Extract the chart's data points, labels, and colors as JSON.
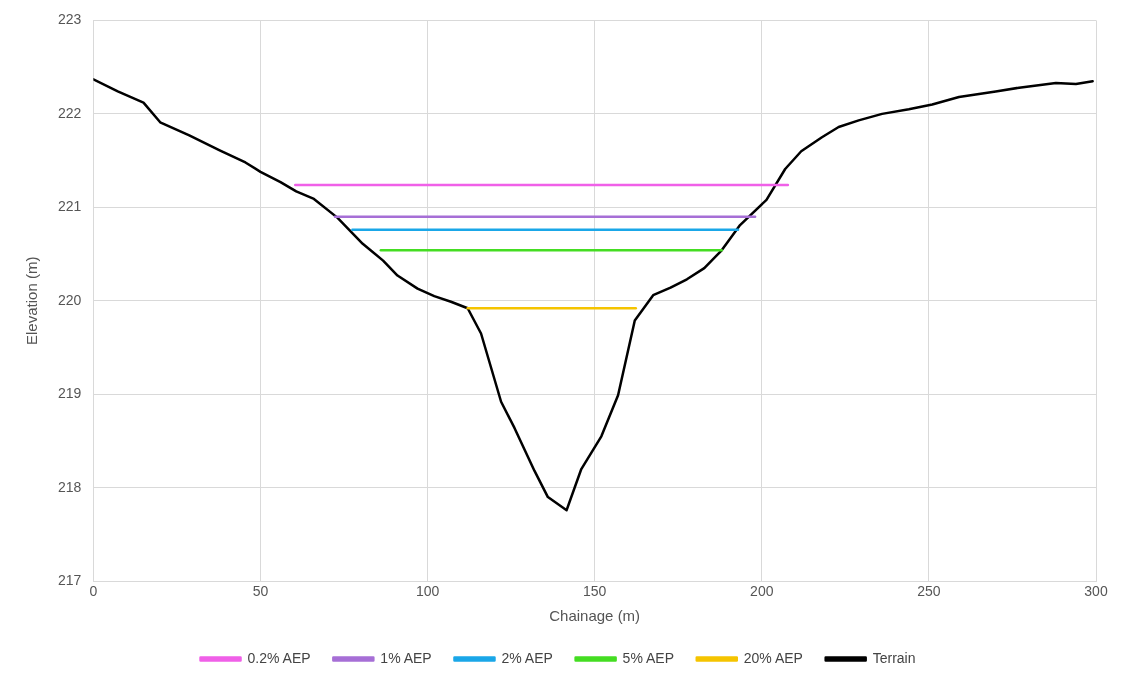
{
  "chart_data": {
    "type": "line",
    "xlabel": "Chainage (m)",
    "ylabel": "Elevation (m)",
    "xlim": [
      0,
      300
    ],
    "xticks": [
      0,
      50,
      100,
      150,
      200,
      250,
      300
    ],
    "ylim": [
      217,
      223
    ],
    "yticks": [
      217,
      218,
      219,
      220,
      221,
      222,
      223
    ],
    "grid": true,
    "legend": "bottom",
    "marker": "none",
    "line_style": "solid",
    "series": [
      {
        "name": "0.2% AEP",
        "color": "#f060e8",
        "x": [
          60.4,
          207.8
        ],
        "values": [
          221.24,
          221.24
        ]
      },
      {
        "name": "1% AEP",
        "color": "#a66fd6",
        "x": [
          72.3,
          198
        ],
        "values": [
          220.9,
          220.9
        ]
      },
      {
        "name": "2% AEP",
        "color": "#1aa7e8",
        "x": [
          77.5,
          192.9
        ],
        "values": [
          220.76,
          220.76
        ]
      },
      {
        "name": "5% AEP",
        "color": "#44dd22",
        "x": [
          86,
          188
        ],
        "values": [
          220.54,
          220.54
        ]
      },
      {
        "name": "20% AEP",
        "color": "#f5c400",
        "x": [
          112,
          162.3
        ],
        "values": [
          219.92,
          219.92
        ]
      },
      {
        "name": "Terrain",
        "color": "#000000",
        "x": [
          0,
          7.3,
          15,
          20,
          28.7,
          37.8,
          45.5,
          50,
          56,
          60.7,
          66,
          73,
          80.6,
          86.7,
          91,
          97,
          102,
          107,
          112,
          116,
          122,
          126,
          132,
          136,
          141.6,
          146,
          152,
          157,
          162,
          167.5,
          172.7,
          177.6,
          182.8,
          188,
          193.5,
          201.4,
          207,
          211.8,
          218,
          223,
          229,
          236,
          244,
          251,
          259,
          270,
          277,
          288,
          294,
          299
        ],
        "values": [
          222.37,
          222.24,
          222.12,
          221.91,
          221.77,
          221.61,
          221.48,
          221.38,
          221.27,
          221.17,
          221.09,
          220.89,
          220.61,
          220.43,
          220.27,
          220.13,
          220.05,
          219.99,
          219.92,
          219.65,
          218.92,
          218.64,
          218.18,
          217.9,
          217.76,
          218.2,
          218.55,
          218.99,
          219.79,
          220.06,
          220.14,
          220.23,
          220.35,
          220.54,
          220.81,
          221.08,
          221.41,
          221.6,
          221.75,
          221.86,
          221.93,
          222.0,
          222.05,
          222.1,
          222.18,
          222.24,
          222.28,
          222.33,
          222.32,
          222.35
        ]
      }
    ]
  }
}
